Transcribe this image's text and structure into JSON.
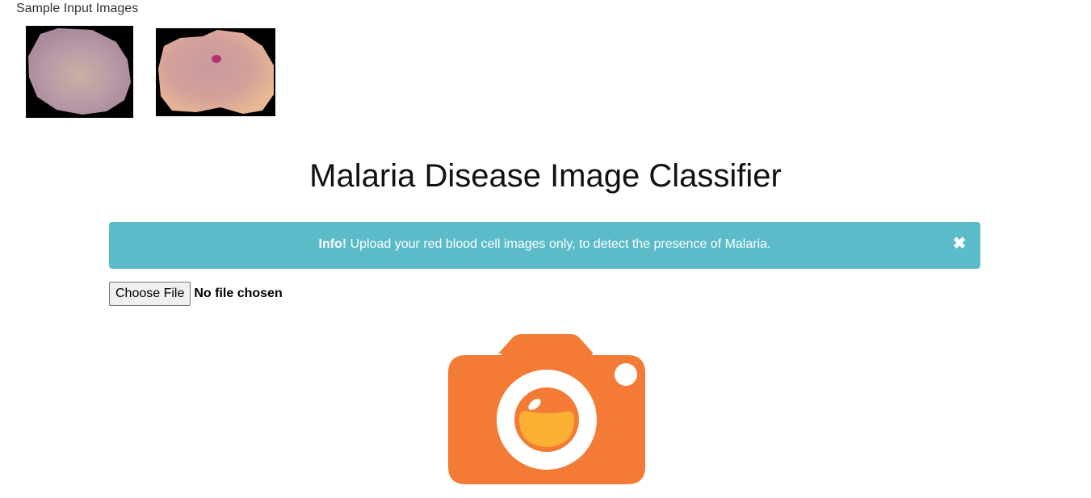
{
  "samples": {
    "label": "Sample Input Images"
  },
  "header": {
    "title": "Malaria Disease Image Classifier"
  },
  "alert": {
    "strong": "Info!",
    "message": " Upload your red blood cell images only, to detect the presence of Malaria.",
    "close_glyph": "✖"
  },
  "upload": {
    "button_label": "Choose File",
    "status": "No file chosen"
  },
  "colors": {
    "alert_bg": "#5bbbc9",
    "camera_body": "#f47b36",
    "camera_lens_inner": "#fbb034"
  },
  "icons": {
    "camera": "camera-icon",
    "close": "close-icon"
  }
}
